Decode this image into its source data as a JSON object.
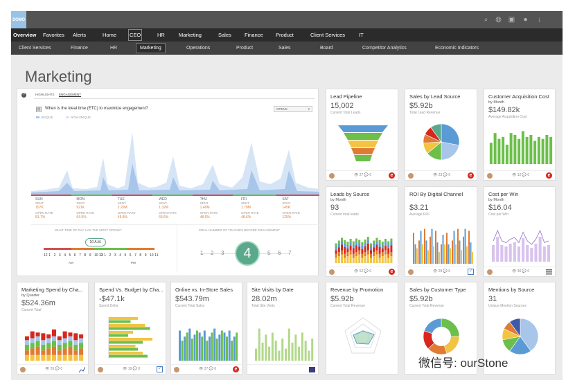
{
  "app": {
    "logo": "DOMO"
  },
  "top_icons": [
    "search-icon",
    "globe-icon",
    "checklist-icon",
    "chat-icon",
    "download-icon"
  ],
  "nav_primary": [
    "Overview",
    "Favorites",
    "Alerts",
    "Home",
    "CEO",
    "HR",
    "Marketing",
    "Sales",
    "Finance",
    "Product",
    "Client Services",
    "IT"
  ],
  "nav_primary_active": "CEO",
  "nav_secondary": [
    "Client Services",
    "Finance",
    "HR",
    "Marketing",
    "Operations",
    "Product",
    "Sales",
    "Board",
    "Competitor Analytics",
    "Economic Indicators"
  ],
  "nav_secondary_active": "Marketing",
  "page_title": "Marketing",
  "engagement": {
    "tabs": [
      "HIGHLIGHTS",
      "ENGAGEMENT"
    ],
    "question": "When is the ideal time (ETC) to maximize engagement?",
    "select": "OPENS",
    "legend": [
      "UNIQUE",
      "NON-UNIQUE"
    ],
    "days": [
      {
        "day": "SUN",
        "sent": "157K",
        "rate": "81.7%"
      },
      {
        "day": "MON",
        "sent": "921K",
        "rate": "64.5%"
      },
      {
        "day": "TUE",
        "sent": "2.29M",
        "rate": "45.8%"
      },
      {
        "day": "WED",
        "sent": "1.32M",
        "rate": "64.5%"
      },
      {
        "day": "THU",
        "sent": "1.46M",
        "rate": "48.5%"
      },
      {
        "day": "FRI",
        "sent": "1.78M",
        "rate": "48.6%"
      },
      {
        "day": "SAT",
        "sent": "145K",
        "rate": "125%"
      }
    ],
    "sent_label": "SENT",
    "rate_label": "OPEN RATE",
    "time_caption": "WHAT TIME OF DAY HAS THE MOST OPENS?",
    "time_badge": "10 A.M.",
    "hours": [
      "12",
      "1",
      "2",
      "3",
      "4",
      "5",
      "6",
      "7",
      "8",
      "9",
      "10",
      "11"
    ],
    "am": "AM",
    "pm": "PM",
    "touches_caption": "IDEAL NUMBER OF TOUCHES BEFORE ENGAGEMENT",
    "touches_left": [
      "1",
      "2",
      "3"
    ],
    "touches_value": "4",
    "touches_right": [
      "5",
      "6",
      "7"
    ]
  },
  "cards": {
    "lead_pipeline": {
      "title": "Lead Pipeline",
      "sub": "",
      "value": "15,002",
      "label": "Current Total Leads",
      "views": "27",
      "comments": "0"
    },
    "sales_lead_source": {
      "title": "Sales by Lead Source",
      "sub": "",
      "value": "$5.92b",
      "label": "Total Lead Revenue",
      "views": "23",
      "comments": "0"
    },
    "cac": {
      "title": "Customer Acquisition Cost",
      "sub": "by Month",
      "value": "$149.82k",
      "label": "Average Acquisition Cost",
      "views": "12",
      "comments": "0"
    },
    "leads_source": {
      "title": "Leads by Source",
      "sub": "by Month",
      "value": "93",
      "label": "Current total leads",
      "views": "52",
      "comments": "0"
    },
    "roi": {
      "title": "ROI By Digital Channel",
      "sub": "",
      "value": "$3.21",
      "label": "Average ROI",
      "views": "29",
      "comments": "0"
    },
    "cpw": {
      "title": "Cost per Win",
      "sub": "by Month",
      "value": "$16.04",
      "label": "Cost per Win",
      "views": "30",
      "comments": "0"
    },
    "mktg_spend": {
      "title": "Marketing Spend by Cha...",
      "sub": "by Quarter",
      "value": "$524.36m",
      "label": "Current Total",
      "views": "26",
      "comments": "0"
    },
    "spend_budget": {
      "title": "Spend Vs. Budget by Cha...",
      "sub": "",
      "value": "-$47.1k",
      "label": "Spend Delta",
      "views": "19",
      "comments": "0"
    },
    "online_store": {
      "title": "Online vs. In-Store Sales",
      "sub": "",
      "value": "$543.79m",
      "label": "Current Total Sales",
      "views": "27",
      "comments": "0"
    },
    "site_visits": {
      "title": "Site Visits by Date",
      "sub": "",
      "value": "28.02m",
      "label": "Total Site Visits",
      "views": "",
      "comments": ""
    },
    "rev_promo": {
      "title": "Revenue by Promotion",
      "sub": "",
      "value": "$5.92b",
      "label": "Current Total Revenue",
      "views": "",
      "comments": ""
    },
    "sales_cust": {
      "title": "Sales by Customer Type",
      "sub": "",
      "value": "$5.92b",
      "label": "Current Total Revenue",
      "views": "",
      "comments": ""
    },
    "mentions": {
      "title": "Mentions by Source",
      "sub": "",
      "value": "31",
      "label": "Unique Mention Sources",
      "views": "",
      "comments": ""
    }
  },
  "watermark": "微信号: ourStone",
  "colors": {
    "orange": "#e07b33",
    "green": "#6cbf4a",
    "blue": "#5b9bd5",
    "yellow": "#f3c342",
    "red": "#d9261c",
    "teal": "#5aa98a",
    "purple": "#a58ad1"
  }
}
